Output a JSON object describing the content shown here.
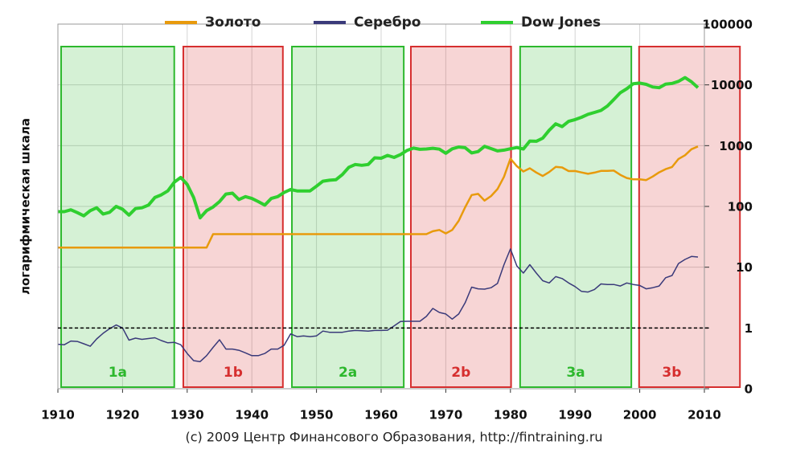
{
  "chart_data": {
    "type": "line",
    "ylabel": "логарифмическая шкала",
    "footer": "(c) 2009 Центр Финансового Образования, http://fintraining.ru",
    "log_scale": true,
    "grid": true,
    "xlim": [
      1910,
      2010
    ],
    "xticks": [
      1910,
      1920,
      1930,
      1940,
      1950,
      1960,
      1970,
      1980,
      1990,
      2000,
      2010
    ],
    "ylim": [
      0.1,
      100000
    ],
    "yticks": [
      {
        "value": 0.1,
        "label": "0"
      },
      1,
      10,
      100,
      1000,
      10000,
      100000
    ],
    "regions": [
      {
        "label": "1a",
        "start": 1910.5,
        "end": 1928.0,
        "color": "#2db82d"
      },
      {
        "label": "1b",
        "start": 1929.4,
        "end": 1944.8,
        "color": "#d62f2f"
      },
      {
        "label": "2a",
        "start": 1946.2,
        "end": 1963.5,
        "color": "#2db82d"
      },
      {
        "label": "2b",
        "start": 1964.6,
        "end": 1980.1,
        "color": "#d62f2f"
      },
      {
        "label": "3a",
        "start": 1981.5,
        "end": 1998.7,
        "color": "#2db82d"
      },
      {
        "label": "3b",
        "start": 1999.9,
        "end": 2015.5,
        "color": "#d62f2f"
      }
    ],
    "x": [
      1910,
      1911,
      1912,
      1913,
      1914,
      1915,
      1916,
      1917,
      1918,
      1919,
      1920,
      1921,
      1922,
      1923,
      1924,
      1925,
      1926,
      1927,
      1928,
      1929,
      1930,
      1931,
      1932,
      1933,
      1934,
      1935,
      1936,
      1937,
      1938,
      1939,
      1940,
      1941,
      1942,
      1943,
      1944,
      1945,
      1946,
      1947,
      1948,
      1949,
      1950,
      1951,
      1952,
      1953,
      1954,
      1955,
      1956,
      1957,
      1958,
      1959,
      1960,
      1961,
      1962,
      1963,
      1964,
      1965,
      1966,
      1967,
      1968,
      1969,
      1970,
      1971,
      1972,
      1973,
      1974,
      1975,
      1976,
      1977,
      1978,
      1979,
      1980,
      1981,
      1982,
      1983,
      1984,
      1985,
      1986,
      1987,
      1988,
      1989,
      1990,
      1991,
      1992,
      1993,
      1994,
      1995,
      1996,
      1997,
      1998,
      1999,
      2000,
      2001,
      2002,
      2003,
      2004,
      2005,
      2006,
      2007,
      2008,
      2009
    ],
    "series": [
      {
        "name": "Золото",
        "color": "#e89a0c",
        "width": 2.5,
        "values": [
          21,
          21,
          21,
          21,
          21,
          21,
          21,
          21,
          21,
          21,
          21,
          21,
          21,
          21,
          21,
          21,
          21,
          21,
          21,
          21,
          21,
          21,
          21,
          21,
          35,
          35,
          35,
          35,
          35,
          35,
          35,
          35,
          35,
          35,
          35,
          35,
          35,
          35,
          35,
          35,
          35,
          35,
          35,
          35,
          35,
          35,
          35,
          35,
          35,
          35,
          35,
          35,
          35,
          35,
          35,
          35,
          35,
          35,
          39,
          41,
          36,
          41,
          58,
          97,
          154,
          161,
          125,
          148,
          193,
          307,
          612,
          460,
          376,
          424,
          361,
          317,
          368,
          447,
          437,
          381,
          383,
          362,
          344,
          360,
          384,
          384,
          388,
          331,
          294,
          279,
          279,
          271,
          310,
          363,
          410,
          445,
          604,
          695,
          872,
          972
        ]
      },
      {
        "name": "Серебро",
        "color": "#3a3a7a",
        "width": 1.5,
        "values": [
          0.54,
          0.53,
          0.61,
          0.6,
          0.55,
          0.5,
          0.66,
          0.82,
          0.97,
          1.12,
          1.0,
          0.63,
          0.68,
          0.65,
          0.67,
          0.69,
          0.62,
          0.57,
          0.58,
          0.53,
          0.38,
          0.29,
          0.28,
          0.35,
          0.48,
          0.64,
          0.45,
          0.45,
          0.43,
          0.39,
          0.35,
          0.35,
          0.38,
          0.45,
          0.45,
          0.52,
          0.8,
          0.72,
          0.74,
          0.72,
          0.74,
          0.89,
          0.85,
          0.85,
          0.85,
          0.89,
          0.91,
          0.9,
          0.89,
          0.91,
          0.91,
          0.92,
          1.08,
          1.28,
          1.29,
          1.29,
          1.29,
          1.55,
          2.1,
          1.8,
          1.7,
          1.4,
          1.7,
          2.6,
          4.7,
          4.4,
          4.35,
          4.6,
          5.4,
          11,
          20,
          10.5,
          8,
          11,
          8,
          6,
          5.5,
          7,
          6.5,
          5.5,
          4.8,
          4,
          3.9,
          4.3,
          5.3,
          5.2,
          5.2,
          4.9,
          5.5,
          5.2,
          5,
          4.4,
          4.6,
          4.9,
          6.7,
          7.3,
          11.5,
          13.4,
          15,
          14.7
        ]
      },
      {
        "name": "Dow Jones",
        "color": "#2fcf2f",
        "width": 4,
        "values": [
          82,
          82,
          88,
          79,
          70,
          85,
          95,
          75,
          80,
          100,
          90,
          72,
          92,
          95,
          105,
          140,
          155,
          180,
          250,
          300,
          230,
          140,
          65,
          85,
          98,
          120,
          160,
          165,
          130,
          145,
          135,
          120,
          105,
          135,
          145,
          170,
          190,
          180,
          180,
          180,
          215,
          260,
          270,
          275,
          335,
          440,
          490,
          475,
          490,
          630,
          620,
          690,
          640,
          715,
          835,
          910,
          870,
          880,
          905,
          875,
          750,
          885,
          950,
          925,
          760,
          800,
          975,
          895,
          820,
          845,
          890,
          930,
          880,
          1190,
          1180,
          1330,
          1790,
          2280,
          2060,
          2510,
          2680,
          2930,
          3280,
          3520,
          3790,
          4490,
          5740,
          7440,
          8630,
          10460,
          10730,
          10190,
          9230,
          8990,
          10310,
          10550,
          11410,
          13170,
          11250,
          9000
        ]
      }
    ]
  }
}
